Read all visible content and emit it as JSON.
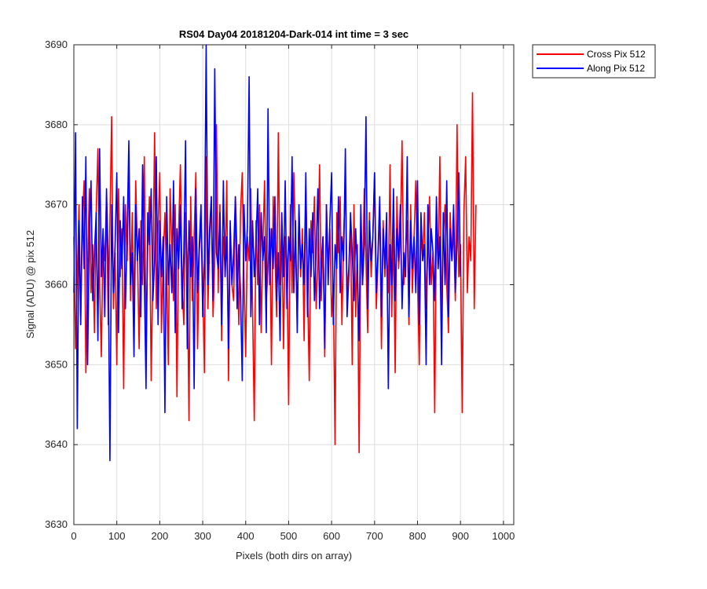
{
  "chart_data": {
    "type": "line",
    "title": "RS04 Day04 20181204-Dark-014 int time = 3 sec",
    "xlabel": "Pixels (both dirs on array)",
    "ylabel": "Signal (ADU) @ pix 512",
    "xlim": [
      0,
      1024
    ],
    "ylim": [
      3630,
      3690
    ],
    "x_ticks": [
      0,
      100,
      200,
      300,
      400,
      500,
      600,
      700,
      800,
      900,
      1000
    ],
    "y_ticks": [
      3630,
      3640,
      3650,
      3660,
      3670,
      3680,
      3690
    ],
    "grid": true,
    "legend_position": "outside-top-right",
    "x_step": 4,
    "series": [
      {
        "name": "Cross Pix 512",
        "color": "#ff0000",
        "values": [
          3666,
          3652,
          3661,
          3670,
          3656,
          3668,
          3673,
          3649,
          3662,
          3672,
          3659,
          3665,
          3654,
          3669,
          3677,
          3660,
          3651,
          3666,
          3663,
          3671,
          3655,
          3668,
          3681,
          3657,
          3664,
          3650,
          3672,
          3661,
          3667,
          3647,
          3670,
          3663,
          3675,
          3658,
          3669,
          3656,
          3673,
          3664,
          3652,
          3668,
          3660,
          3676,
          3653,
          3665,
          3671,
          3648,
          3662,
          3679,
          3657,
          3667,
          3674,
          3654,
          3663,
          3669,
          3661,
          3650,
          3672,
          3665,
          3658,
          3670,
          3646,
          3667,
          3675,
          3660,
          3655,
          3669,
          3663,
          3643,
          3671,
          3658,
          3666,
          3674,
          3652,
          3664,
          3668,
          3661,
          3649,
          3676,
          3657,
          3665,
          3671,
          3656,
          3663,
          3680,
          3659,
          3670,
          3653,
          3666,
          3662,
          3673,
          3648,
          3667,
          3660,
          3658,
          3671,
          3664,
          3655,
          3669,
          3674,
          3661,
          3651,
          3666,
          3663,
          3672,
          3657,
          3643,
          3668,
          3660,
          3670,
          3654,
          3665,
          3673,
          3658,
          3662,
          3667,
          3650,
          3671,
          3664,
          3656,
          3679,
          3660,
          3668,
          3652,
          3666,
          3663,
          3645,
          3670,
          3659,
          3674,
          3665,
          3655,
          3669,
          3661,
          3667,
          3653,
          3672,
          3660,
          3648,
          3668,
          3664,
          3671,
          3657,
          3663,
          3675,
          3658,
          3666,
          3651,
          3670,
          3662,
          3667,
          3656,
          3660,
          3640,
          3669,
          3664,
          3671,
          3655,
          3666,
          3673,
          3659,
          3662,
          3668,
          3650,
          3670,
          3656,
          3665,
          3639,
          3667,
          3660,
          3672,
          3663,
          3654,
          3669,
          3661,
          3666,
          3674,
          3657,
          3663,
          3670,
          3652,
          3668,
          3661,
          3665,
          3659,
          3675,
          3656,
          3667,
          3649,
          3671,
          3662,
          3666,
          3678,
          3660,
          3664,
          3668,
          3655,
          3670,
          3659,
          3666,
          3673,
          3661,
          3650,
          3667,
          3663,
          3669,
          3657,
          3665,
          3671,
          3660,
          3664,
          3644,
          3668,
          3662,
          3676,
          3656,
          3666,
          3670,
          3660,
          3654,
          3669,
          3663,
          3667,
          3658,
          3680,
          3661,
          3665,
          3644,
          3669,
          3676,
          3659,
          3666,
          3663,
          3684,
          3657,
          3670
        ]
      },
      {
        "name": "Along Pix 512",
        "color": "#0000ff",
        "values": [
          3659,
          3679,
          3642,
          3668,
          3655,
          3671,
          3662,
          3676,
          3650,
          3666,
          3673,
          3658,
          3664,
          3669,
          3653,
          3677,
          3661,
          3667,
          3656,
          3672,
          3663,
          3638,
          3670,
          3659,
          3665,
          3674,
          3654,
          3668,
          3662,
          3671,
          3657,
          3666,
          3678,
          3660,
          3664,
          3651,
          3670,
          3663,
          3667,
          3656,
          3675,
          3661,
          3647,
          3669,
          3665,
          3672,
          3658,
          3663,
          3676,
          3655,
          3668,
          3661,
          3666,
          3644,
          3671,
          3660,
          3665,
          3659,
          3673,
          3654,
          3667,
          3662,
          3670,
          3657,
          3664,
          3678,
          3652,
          3668,
          3661,
          3666,
          3647,
          3672,
          3659,
          3665,
          3670,
          3656,
          3663,
          3690,
          3660,
          3667,
          3671,
          3658,
          3687,
          3664,
          3662,
          3669,
          3655,
          3673,
          3661,
          3666,
          3652,
          3668,
          3660,
          3664,
          3671,
          3657,
          3665,
          3659,
          3648,
          3670,
          3663,
          3667,
          3686,
          3656,
          3668,
          3661,
          3665,
          3672,
          3655,
          3669,
          3663,
          3666,
          3654,
          3682,
          3660,
          3667,
          3662,
          3671,
          3658,
          3664,
          3653,
          3669,
          3661,
          3673,
          3657,
          3666,
          3663,
          3676,
          3659,
          3668,
          3654,
          3670,
          3662,
          3665,
          3660,
          3674,
          3656,
          3667,
          3661,
          3669,
          3658,
          3664,
          3672,
          3657,
          3663,
          3666,
          3652,
          3670,
          3660,
          3668,
          3674,
          3655,
          3665,
          3662,
          3671,
          3659,
          3666,
          3663,
          3677,
          3656,
          3661,
          3669,
          3664,
          3658,
          3667,
          3662,
          3653,
          3670,
          3660,
          3665,
          3681,
          3657,
          3668,
          3663,
          3666,
          3674,
          3659,
          3664,
          3671,
          3656,
          3667,
          3662,
          3669,
          3647,
          3665,
          3660,
          3672,
          3658,
          3667,
          3663,
          3670,
          3657,
          3664,
          3661,
          3676,
          3656,
          3668,
          3662,
          3666,
          3659,
          3673,
          3655,
          3669,
          3663,
          3665,
          3650,
          3670,
          3660,
          3667,
          3664,
          3658,
          3671,
          3662,
          3666,
          3650,
          3669,
          3660,
          3673,
          3656,
          3667,
          3663,
          3670,
          3659,
          3665,
          3674,
          3661
        ]
      }
    ]
  }
}
